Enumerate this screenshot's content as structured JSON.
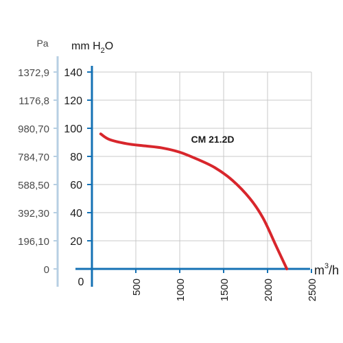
{
  "chart_data": {
    "type": "line",
    "series": [
      {
        "name": "CM 21.2D",
        "x": [
          100,
          200,
          400,
          600,
          800,
          1000,
          1200,
          1400,
          1600,
          1800,
          1950,
          2100,
          2220
        ],
        "y": [
          96,
          92,
          89,
          87.5,
          86,
          83,
          78,
          72,
          63,
          50,
          36,
          16,
          0
        ]
      }
    ],
    "x_unit": "m",
    "x_unit_sup": "3",
    "x_unit_suffix": "/h",
    "x_ticks": [
      500,
      1000,
      1500,
      2000,
      2500
    ],
    "x_zero_label": "0",
    "xlim": [
      0,
      2500
    ],
    "y_unit": "mm H",
    "y_unit_sub": "2",
    "y_unit_suffix": "O",
    "y_ticks": [
      20,
      40,
      60,
      80,
      100,
      120,
      140
    ],
    "ylim": [
      0,
      140
    ],
    "y2_unit": "Pa",
    "y2_ticks": [
      "0",
      "196,10",
      "392,30",
      "588,50",
      "784,70",
      "980,70",
      "1176,8",
      "1372,9"
    ],
    "grid": true,
    "colors": {
      "curve": "#d8262c",
      "axis": "#1471b4",
      "pa_axis": "#b7cfe3",
      "grid": "#c8c8c8"
    }
  }
}
